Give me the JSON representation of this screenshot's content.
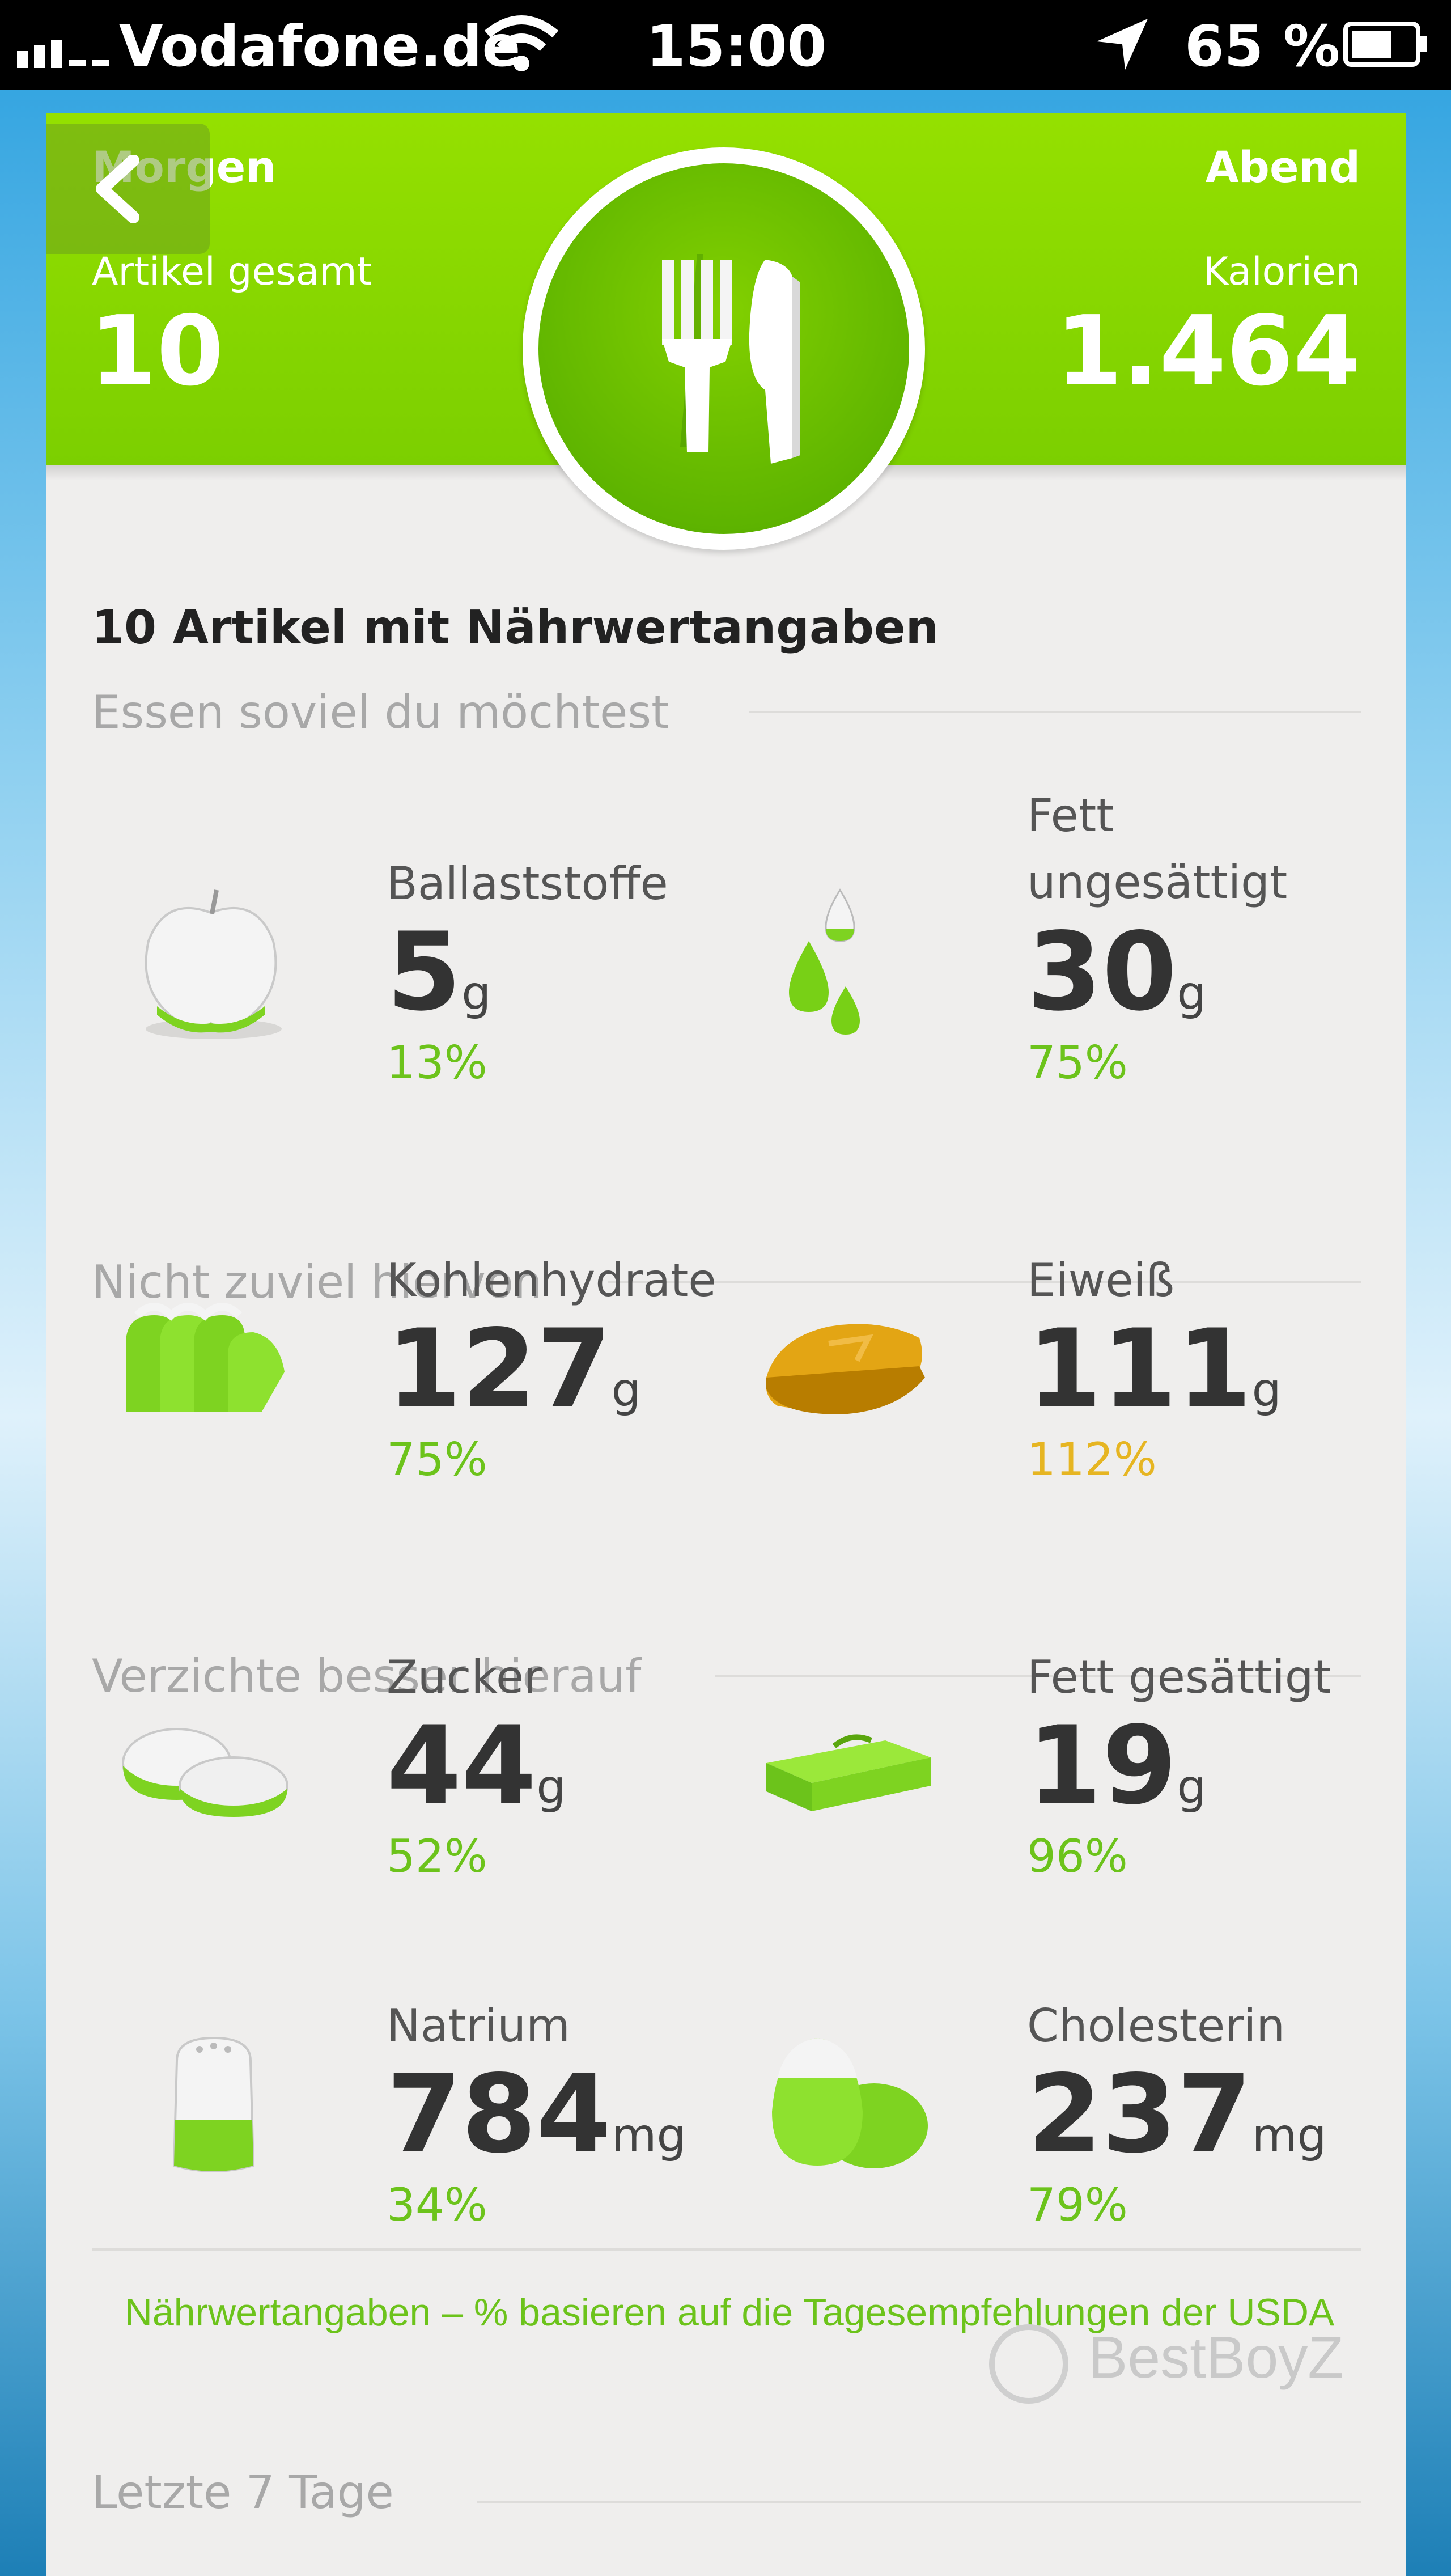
{
  "status_bar": {
    "carrier": "Vodafone.de",
    "time": "15:00",
    "battery": "65 %",
    "icons": [
      "signal-icon",
      "wifi-icon",
      "location-arrow-icon",
      "battery-icon"
    ]
  },
  "header": {
    "left_label": "Morgen",
    "right_label": "Abend",
    "left_caption": "Artikel gesamt",
    "left_value": "10",
    "right_caption": "Kalorien",
    "right_value": "1.464",
    "emblem_icon": "fork-knife-icon",
    "back_icon": "chevron-left-icon"
  },
  "section_title": "10 Artikel mit Nährwertangaben",
  "groups": [
    {
      "label": "Essen soviel du möchtest"
    },
    {
      "label": "Nicht zuviel hiervon"
    },
    {
      "label": "Verzichte besser hierauf"
    }
  ],
  "nutrients": [
    {
      "name": "Ballaststoffe",
      "value": "5",
      "unit": "g",
      "percent": "13%",
      "icon": "apple-icon",
      "fill": 0.13
    },
    {
      "name": "Fett ungesättigt",
      "value": "30",
      "unit": "g",
      "percent": "75%",
      "icon": "oil-drops-icon",
      "fill": 0.75
    },
    {
      "name": "Kohlenhydrate",
      "value": "127",
      "unit": "g",
      "percent": "75%",
      "icon": "bread-slices-icon",
      "fill": 0.75
    },
    {
      "name": "Eiweiß",
      "value": "111",
      "unit": "g",
      "percent": "112%",
      "icon": "steak-icon",
      "fill": 1.12
    },
    {
      "name": "Zucker",
      "value": "44",
      "unit": "g",
      "percent": "52%",
      "icon": "sugar-cubes-icon",
      "fill": 0.52
    },
    {
      "name": "Fett gesättigt",
      "value": "19",
      "unit": "g",
      "percent": "96%",
      "icon": "butter-icon",
      "fill": 0.96
    },
    {
      "name": "Natrium",
      "value": "784",
      "unit": "mg",
      "percent": "34%",
      "icon": "salt-shaker-icon",
      "fill": 0.34
    },
    {
      "name": "Cholesterin",
      "value": "237",
      "unit": "mg",
      "percent": "79%",
      "icon": "eggs-icon",
      "fill": 0.79
    }
  ],
  "footnote": "Nährwertangaben – % basieren auf die Tagesempfehlungen der USDA",
  "last_days_label": "Letzte 7 Tage",
  "watermark": "BestBoyZ",
  "colors": {
    "header_green": "#7ccf00",
    "percent_green": "#6cc31b",
    "percent_warning": "#e6b522",
    "card_bg": "#efeeed"
  }
}
